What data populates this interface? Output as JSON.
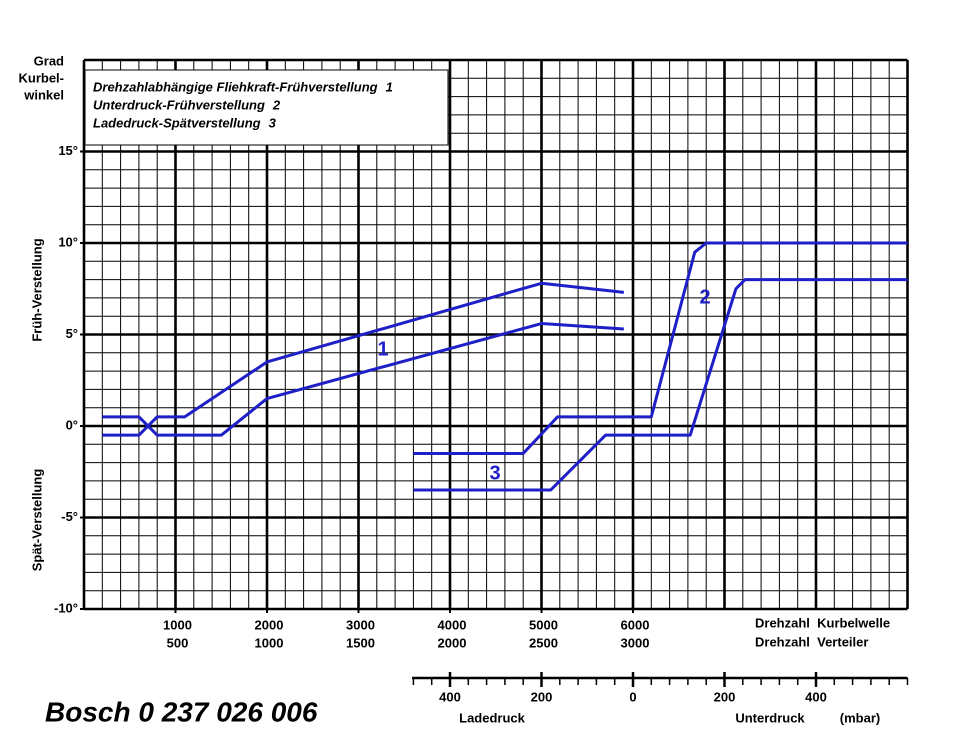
{
  "chart_data": {
    "type": "line",
    "title": "Bosch 0 237 026 006",
    "y_axis_unit_label": [
      "Grad",
      "Kurbel-",
      "winkel"
    ],
    "y_axis_label_upper": "Früh-Verstellung",
    "y_axis_label_lower": "Spät-Verstellung",
    "legend": [
      {
        "name": "Drehzahlabhängige Fliehkraft-Frühverstellung",
        "number": 1
      },
      {
        "name": "Unterdruck-Frühverstellung",
        "number": 2
      },
      {
        "name": "Ladedruck-Spätverstellung",
        "number": 3
      }
    ],
    "curve_labels": [
      "1",
      "2",
      "3"
    ],
    "xlim": [
      0,
      9000
    ],
    "xticks": [
      1000,
      2000,
      3000,
      4000,
      5000,
      6000
    ],
    "distributor_ticks": [
      500,
      1000,
      1500,
      2000,
      2500,
      3000
    ],
    "x_axis_label": "Drehzahl  Kurbelwelle",
    "x_axis_label_2": "Drehzahl  Verteiler",
    "x2lim": [
      -1200,
      600
    ],
    "x2ticks": [
      {
        "value": -400,
        "label": "400"
      },
      {
        "value": -200,
        "label": "200"
      },
      0,
      200,
      400
    ],
    "x2_label_left": "Ladedruck",
    "x2_label_right": "Unterdruck",
    "x2_unit": "(mbar)",
    "ylim": [
      -10,
      20
    ],
    "yticks": [
      {
        "value": -10,
        "label": "-10°"
      },
      {
        "value": -5,
        "label": "-5°"
      },
      {
        "value": 0,
        "label": "0°"
      },
      {
        "value": 5,
        "label": "5°"
      },
      {
        "value": 10,
        "label": "10°"
      },
      {
        "value": 15,
        "label": "15°"
      }
    ],
    "grid": true,
    "color": "#1f1fc8",
    "series": [
      {
        "x": [
          200,
          600,
          800,
          1500,
          2000,
          5000,
          5900
        ],
        "values": [
          0.5,
          0.5,
          -0.5,
          -0.5,
          1.5,
          5.6,
          5.3
        ]
      },
      {
        "x": [
          200,
          600,
          800,
          1100,
          2000,
          5000,
          5900
        ],
        "values": [
          -0.5,
          -0.5,
          0.5,
          0.5,
          3.5,
          7.8,
          7.3
        ]
      },
      {
        "axis": "x2",
        "x": [
          -480,
          -240,
          -165,
          40,
          135,
          160,
          600
        ],
        "values": [
          -1.5,
          -1.5,
          0.5,
          0.5,
          9.5,
          10,
          10
        ]
      },
      {
        "axis": "x2",
        "x": [
          -480,
          -180,
          -60,
          125,
          225,
          245,
          600
        ],
        "values": [
          -3.5,
          -3.5,
          -0.5,
          -0.5,
          7.5,
          8,
          8
        ]
      }
    ]
  }
}
